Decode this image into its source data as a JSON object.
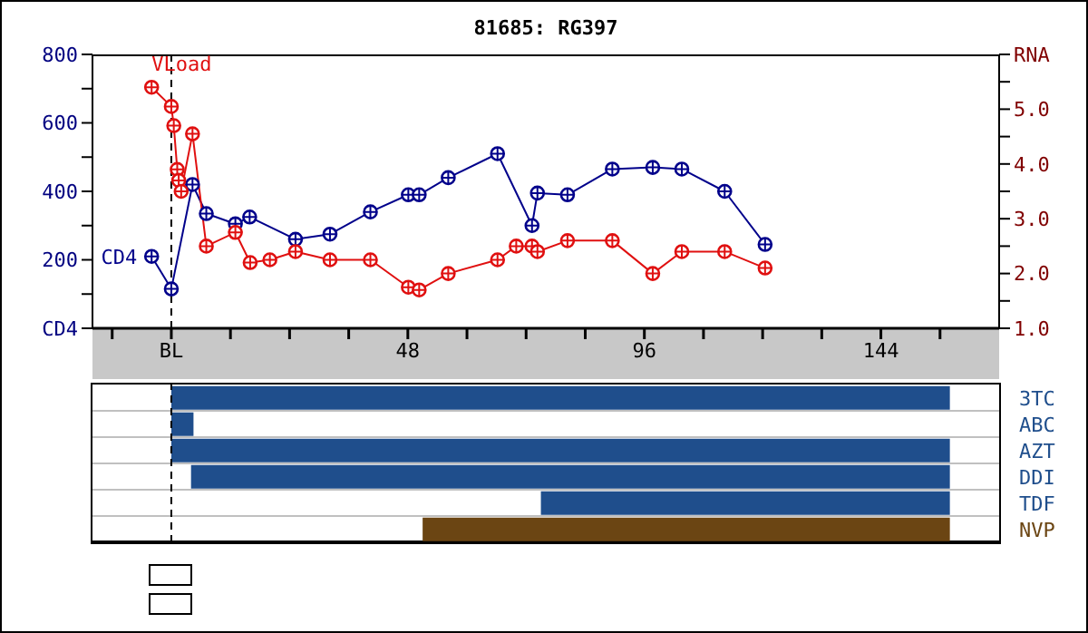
{
  "chart_data": [
    {
      "type": "line",
      "title": "81685: RG397",
      "xlim": [
        -16,
        168
      ],
      "xticks": [
        {
          "value": -12,
          "label": null
        },
        {
          "value": 0,
          "label": "BL"
        },
        {
          "value": 12,
          "label": null
        },
        {
          "value": 24,
          "label": null
        },
        {
          "value": 36,
          "label": null
        },
        48,
        {
          "value": 60,
          "label": null
        },
        {
          "value": 72,
          "label": null
        },
        {
          "value": 84,
          "label": null
        },
        96,
        {
          "value": 108,
          "label": null
        },
        {
          "value": 120,
          "label": null
        },
        {
          "value": 132,
          "label": null
        },
        144,
        {
          "value": 156,
          "label": null
        }
      ],
      "ylim": [
        0,
        800
      ],
      "yticks": [
        {
          "value": 0,
          "label": "CD4"
        },
        {
          "value": 100,
          "label": null
        },
        200,
        {
          "value": 300,
          "label": null
        },
        400,
        {
          "value": 500,
          "label": null
        },
        600,
        {
          "value": 700,
          "label": null
        },
        800
      ],
      "y2lim": [
        1,
        6
      ],
      "y2ticks": [
        {
          "value": 1,
          "label": "1.0"
        },
        {
          "value": 1.5,
          "label": null
        },
        {
          "value": 2,
          "label": "2.0"
        },
        {
          "value": 2.5,
          "label": null
        },
        {
          "value": 3,
          "label": "3.0"
        },
        {
          "value": 3.5,
          "label": null
        },
        {
          "value": 4,
          "label": "4.0"
        },
        {
          "value": 4.5,
          "label": null
        },
        {
          "value": 5,
          "label": "5.0"
        },
        {
          "value": 5.5,
          "label": null
        },
        {
          "value": 6,
          "label": "RNA"
        }
      ],
      "marker": "circle",
      "ref_lines": [
        {
          "axis": "x",
          "value": 0,
          "color": "#000000",
          "line_style": "dashed"
        }
      ],
      "series": [
        {
          "name": "CD4",
          "color": "#00008b",
          "x": [
            -4,
            0,
            4.3,
            7.1,
            13,
            15.9,
            25.2,
            32.2,
            40.4,
            48.1,
            50.3,
            56.2,
            66.2,
            73.2,
            74.3,
            80.4,
            89.5,
            97.7,
            103.6,
            112.3,
            120.5
          ],
          "values": [
            210,
            115,
            420,
            335,
            305,
            325,
            260,
            275,
            340,
            390,
            390,
            440,
            510,
            300,
            395,
            390,
            465,
            470,
            465,
            400,
            245
          ]
        },
        {
          "name": "VLoad",
          "color": "#e01010",
          "axis": "y2",
          "x": [
            -4,
            0,
            0.5,
            1.2,
            1.5,
            2,
            4.3,
            7.1,
            13,
            16,
            20,
            25.2,
            32.2,
            40.4,
            48.1,
            50.3,
            56.2,
            66.2,
            70,
            73.2,
            74.3,
            80.4,
            89.5,
            97.7,
            103.6,
            112.3,
            120.5
          ],
          "values": [
            5.4,
            5.05,
            4.7,
            3.9,
            3.7,
            3.5,
            4.55,
            2.5,
            2.75,
            2.2,
            2.25,
            2.4,
            2.25,
            2.25,
            1.75,
            1.7,
            2.0,
            2.25,
            2.5,
            2.5,
            2.4,
            2.6,
            2.6,
            2.0,
            2.4,
            2.4,
            2.1
          ]
        }
      ]
    },
    {
      "type": "bar",
      "orientation": "horizontal",
      "categories": [
        "3TC",
        "ABC",
        "AZT",
        "DDI",
        "TDF",
        "NVP"
      ],
      "base": [
        0,
        0,
        0,
        4,
        75,
        51
      ],
      "values": [
        158,
        4.5,
        158,
        154,
        83,
        107
      ],
      "colors": [
        "#1f4e8c",
        "#1f4e8c",
        "#1f4e8c",
        "#1f4e8c",
        "#1f4e8c",
        "#6b4513"
      ],
      "xlim": [
        -16,
        168
      ],
      "tick_labels": "y",
      "grid": "y",
      "ref_lines": [
        {
          "axis": "x",
          "value": 0,
          "color": "#000000",
          "line_style": "dashed"
        }
      ]
    }
  ]
}
